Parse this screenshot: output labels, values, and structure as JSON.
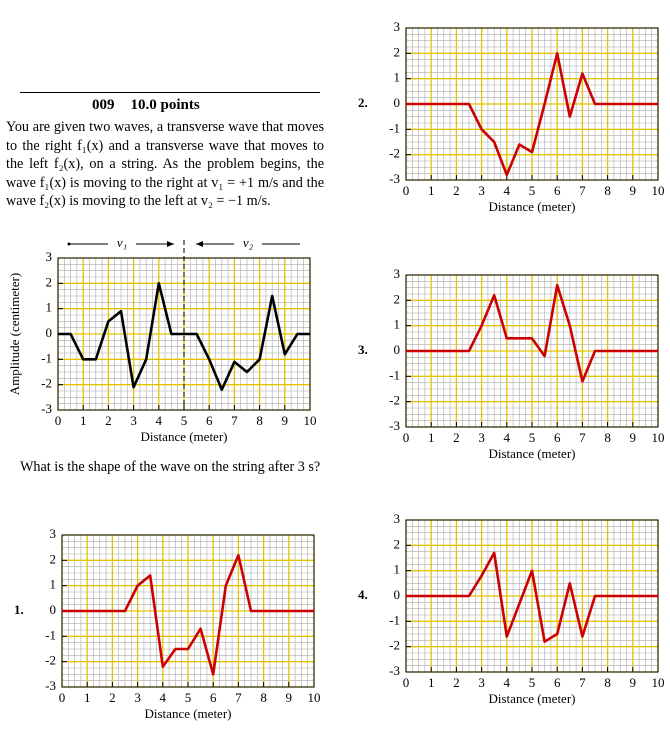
{
  "problem": {
    "number": "009",
    "points": "10.0 points",
    "text": "You are given two waves, a transverse wave that moves to the right f₁(x) and a transverse wave that moves to the left f₂(x), on a string. As the problem begins, the wave f₁(x) is moving to the right at v₁ = +1 m/s and the wave f₂(x) is moving to the left at v₂ = −1 m/s.",
    "question": "What is the shape of the wave on the string after 3 s?"
  },
  "chart_data": [
    {
      "type": "line",
      "xlabel": "Distance (meter)",
      "ylabel": "Amplitude (centimeter)",
      "annotations": [
        "v₁",
        "v₂"
      ],
      "color": "#000000",
      "grid_color": "#e3c400",
      "x": [
        0,
        0.5,
        1,
        1.5,
        2,
        2.5,
        3,
        3.5,
        4,
        4.5,
        5,
        5.5,
        6,
        6.5,
        7,
        7.5,
        8,
        8.5,
        9,
        9.5,
        10
      ],
      "values": [
        0,
        0,
        -1,
        -1,
        0.5,
        0.9,
        -2.1,
        -1,
        2,
        0,
        0,
        0,
        -1,
        -2.2,
        -1.1,
        -1.5,
        -1,
        1.5,
        -0.8,
        0,
        0
      ],
      "xlim": [
        0,
        10
      ],
      "xticks": [
        0,
        1,
        2,
        3,
        4,
        5,
        6,
        7,
        8,
        9,
        10
      ],
      "ylim": [
        -3,
        3
      ],
      "yticks": [
        -3,
        -2,
        -1,
        0,
        1,
        2,
        3
      ]
    },
    {
      "type": "line",
      "option": "1.",
      "xlabel": "Distance (meter)",
      "color": "#cc0000",
      "grid_color": "#e3c400",
      "x": [
        0,
        2.5,
        3,
        3.5,
        4,
        4.5,
        5,
        5.5,
        6,
        6.5,
        7,
        7.5,
        10
      ],
      "values": [
        0,
        0,
        1,
        1.4,
        -2.2,
        -1.5,
        -1.5,
        -0.7,
        -2.5,
        1,
        2.2,
        0,
        0
      ],
      "xlim": [
        0,
        10
      ],
      "xticks": [
        0,
        1,
        2,
        3,
        4,
        5,
        6,
        7,
        8,
        9,
        10
      ],
      "ylim": [
        -3,
        3
      ],
      "yticks": [
        -3,
        -2,
        -1,
        0,
        1,
        2,
        3
      ]
    },
    {
      "type": "line",
      "option": "2.",
      "xlabel": "Distance (meter)",
      "color": "#cc0000",
      "grid_color": "#e3c400",
      "x": [
        0,
        2.5,
        3,
        3.5,
        4,
        4.5,
        5,
        5.5,
        6,
        6.5,
        7,
        7.5,
        10
      ],
      "values": [
        0,
        0,
        -1,
        -1.5,
        -2.8,
        -1.6,
        -1.9,
        0,
        2,
        -0.5,
        1.2,
        0,
        0
      ],
      "xlim": [
        0,
        10
      ],
      "xticks": [
        0,
        1,
        2,
        3,
        4,
        5,
        6,
        7,
        8,
        9,
        10
      ],
      "ylim": [
        -3,
        3
      ],
      "yticks": [
        -3,
        -2,
        -1,
        0,
        1,
        2,
        3
      ]
    },
    {
      "type": "line",
      "option": "3.",
      "xlabel": "Distance (meter)",
      "color": "#cc0000",
      "grid_color": "#e3c400",
      "x": [
        0,
        2.5,
        3,
        3.5,
        4,
        5,
        5.5,
        6,
        6.5,
        7,
        7.5,
        10
      ],
      "values": [
        0,
        0,
        1,
        2.2,
        0.5,
        0.5,
        -0.2,
        2.6,
        1,
        -1.2,
        0,
        0
      ],
      "xlim": [
        0,
        10
      ],
      "xticks": [
        0,
        1,
        2,
        3,
        4,
        5,
        6,
        7,
        8,
        9,
        10
      ],
      "ylim": [
        -3,
        3
      ],
      "yticks": [
        -3,
        -2,
        -1,
        0,
        1,
        2,
        3
      ]
    },
    {
      "type": "line",
      "option": "4.",
      "xlabel": "Distance (meter)",
      "color": "#cc0000",
      "grid_color": "#e3c400",
      "x": [
        0,
        2.5,
        3,
        3.5,
        4,
        4.5,
        5,
        5.5,
        6,
        6.5,
        7,
        7.5,
        10
      ],
      "values": [
        0,
        0,
        0.8,
        1.7,
        -1.6,
        -0.3,
        1,
        -1.8,
        -1.5,
        0.5,
        -1.6,
        0,
        0
      ],
      "xlim": [
        0,
        10
      ],
      "xticks": [
        0,
        1,
        2,
        3,
        4,
        5,
        6,
        7,
        8,
        9,
        10
      ],
      "ylim": [
        -3,
        3
      ],
      "yticks": [
        -3,
        -2,
        -1,
        0,
        1,
        2,
        3
      ]
    }
  ]
}
